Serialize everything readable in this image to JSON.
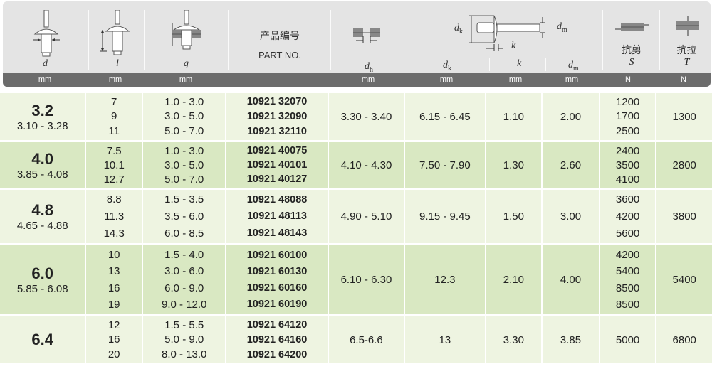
{
  "header": {
    "columns": [
      {
        "symbol": "d",
        "unit": "mm",
        "icon": "rivet-diameter-icon"
      },
      {
        "symbol": "l",
        "unit": "mm",
        "icon": "rivet-length-icon"
      },
      {
        "symbol": "g",
        "unit": "mm",
        "icon": "grip-range-icon"
      },
      {
        "label_cn": "产品编号",
        "label_en": "PART NO.",
        "unit": ""
      },
      {
        "symbol": "d",
        "sub": "h",
        "unit": "mm",
        "icon": "hole-diameter-icon"
      },
      {
        "symbol": "d",
        "sub": "k",
        "unit": "mm"
      },
      {
        "symbol": "k",
        "unit": "mm"
      },
      {
        "symbol": "d",
        "sub": "m",
        "unit": "mm"
      },
      {
        "label_cn": "抗剪",
        "symbol": "S",
        "unit": "N",
        "icon": "shear-force-icon"
      },
      {
        "label_cn": "抗拉",
        "symbol": "T",
        "unit": "N",
        "icon": "tensile-force-icon"
      }
    ],
    "diagram": {
      "label_dk": "d",
      "label_dk_sub": "k",
      "label_dm": "d",
      "label_dm_sub": "m",
      "label_k": "k",
      "icon": "rivet-head-dimensions-icon"
    }
  },
  "colors": {
    "header_bg": "#e4e4e4",
    "unit_bar": "#6c6c6c",
    "row_light": "#eef4e1",
    "row_green": "#d9e8c2"
  },
  "rows": [
    {
      "d": "3.2",
      "d_range": "3.10 - 3.28",
      "l": [
        "7",
        "9",
        "11"
      ],
      "g": [
        "1.0 - 3.0",
        "3.0 - 5.0",
        "5.0 - 7.0"
      ],
      "part": [
        "10921 32070",
        "10921 32090",
        "10921 32110"
      ],
      "dh": "3.30 - 3.40",
      "dk": "6.15 - 6.45",
      "k": "1.10",
      "dm": "2.00",
      "S": [
        "1200",
        "1700",
        "2500"
      ],
      "T": "1300"
    },
    {
      "d": "4.0",
      "d_range": "3.85 - 4.08",
      "l": [
        "7.5",
        "10.1",
        "12.7"
      ],
      "g": [
        "1.0 - 3.0",
        "3.0 - 5.0",
        "5.0 - 7.0"
      ],
      "part": [
        "10921 40075",
        "10921 40101",
        "10921 40127"
      ],
      "dh": "4.10 - 4.30",
      "dk": "7.50 - 7.90",
      "k": "1.30",
      "dm": "2.60",
      "S": [
        "2400",
        "3500",
        "4100"
      ],
      "T": "2800"
    },
    {
      "d": "4.8",
      "d_range": "4.65 - 4.88",
      "l": [
        "8.8",
        "11.3",
        "14.3"
      ],
      "g": [
        "1.5 - 3.5",
        "3.5 - 6.0",
        "6.0 - 8.5"
      ],
      "part": [
        "10921 48088",
        "10921 48113",
        "10921 48143"
      ],
      "dh": "4.90 - 5.10",
      "dk": "9.15 - 9.45",
      "k": "1.50",
      "dm": "3.00",
      "S": [
        "3600",
        "4200",
        "5600"
      ],
      "T": "3800"
    },
    {
      "d": "6.0",
      "d_range": "5.85 - 6.08",
      "l": [
        "10",
        "13",
        "16",
        "19"
      ],
      "g": [
        "1.5 - 4.0",
        "3.0 - 6.0",
        "6.0 - 9.0",
        "9.0 - 12.0"
      ],
      "part": [
        "10921 60100",
        "10921 60130",
        "10921 60160",
        "10921 60190"
      ],
      "dh": "6.10 - 6.30",
      "dk": "12.3",
      "k": "2.10",
      "dm": "4.00",
      "S": [
        "4200",
        "5400",
        "8500",
        "8500"
      ],
      "T": "5400"
    },
    {
      "d": "6.4",
      "d_range": "",
      "l": [
        "12",
        "16",
        "20"
      ],
      "g": [
        "1.5 - 5.5",
        "5.0 - 9.0",
        "8.0 - 13.0"
      ],
      "part": [
        "10921 64120",
        "10921 64160",
        "10921 64200"
      ],
      "dh": "6.5-6.6",
      "dk": "13",
      "k": "3.30",
      "dm": "3.85",
      "S": [
        "5000"
      ],
      "T": "6800"
    }
  ]
}
